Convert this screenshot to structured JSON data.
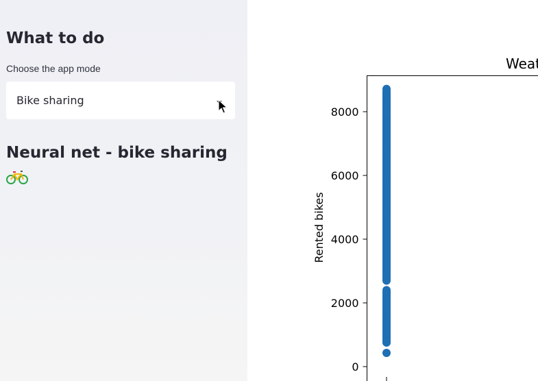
{
  "sidebar": {
    "heading": "What to do",
    "mode_label": "Choose the app mode",
    "mode_select": {
      "value": "Bike sharing"
    },
    "subheading": "Neural net - bike sharing",
    "emoji_icon": "bicycle-icon"
  },
  "colors": {
    "sidebar_bg": "#f0f2f6",
    "marker": "#1f6fb4"
  },
  "chart_data": {
    "type": "scatter",
    "title": "Weat",
    "ylabel": "Rented bikes",
    "xlabel": "",
    "yticks": [
      0,
      2000,
      4000,
      6000,
      8000
    ],
    "ytick_labels": [
      "0",
      "2000",
      "4000",
      "6000",
      "8000"
    ],
    "ylim": [
      -220,
      9150
    ],
    "series": [
      {
        "values": [
          431,
          754,
          806,
          900,
          1000,
          1100,
          1200,
          1300,
          1400,
          1500,
          1600,
          1700,
          1800,
          1900,
          2000,
          2100,
          2200,
          2300,
          2400,
          2700,
          2800,
          2900,
          3000,
          3200,
          3400,
          3600,
          3800,
          4000,
          4200,
          4400,
          4600,
          4800,
          5000,
          5200,
          5400,
          5600,
          5800,
          6000,
          6200,
          6400,
          6600,
          6800,
          7000,
          7200,
          7400,
          7600,
          7800,
          8000,
          8200,
          8400,
          8600,
          8714
        ]
      }
    ]
  }
}
